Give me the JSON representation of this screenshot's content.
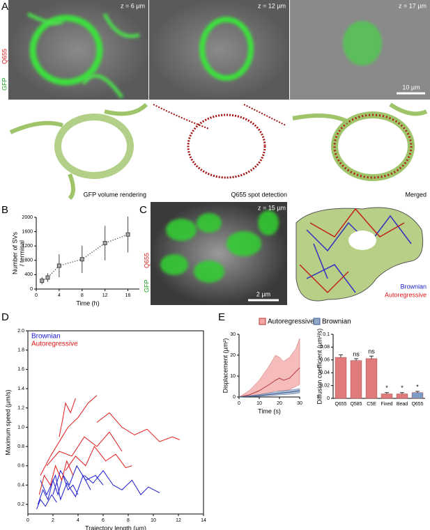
{
  "panels": {
    "a": "A",
    "b": "B",
    "c": "C",
    "d": "D",
    "e": "E"
  },
  "panel_a": {
    "channel_labels": [
      "GFP",
      "Q655"
    ],
    "z_labels": [
      "z = 6 µm",
      "z = 12 µm",
      "z = 17 µm"
    ],
    "scale_bar": "10 µm",
    "captions": [
      "GFP volume rendering",
      "Q655 spot detection",
      "Merged"
    ]
  },
  "panel_c": {
    "channel_labels": [
      "GFP",
      "Q655"
    ],
    "z_label": "z = 15 µm",
    "scale_bar": "2 µm",
    "legend": [
      "Brownian",
      "Autoregressive"
    ]
  },
  "chart_data": [
    {
      "type": "errorbar",
      "x_label": "Time (h)",
      "y_label": [
        "Number of SVs",
        "/ terminal"
      ],
      "x": [
        1,
        2,
        4,
        8,
        12,
        16
      ],
      "values": [
        230,
        320,
        650,
        830,
        1280,
        1520
      ],
      "errors": [
        100,
        120,
        320,
        380,
        480,
        500
      ],
      "xlim": [
        0,
        18
      ],
      "xticks": [
        0,
        4,
        8,
        12,
        16
      ],
      "ylim": [
        0,
        2000
      ],
      "yticks": [
        0,
        400,
        800,
        1200,
        1600,
        2000
      ],
      "fit": "dotted",
      "color": "#444444"
    },
    {
      "type": "trajectory",
      "x_label": "Trajectory length (µm)",
      "y_label": "Maximum speed (µm/s)",
      "xlim": [
        0,
        14
      ],
      "xticks": [
        0,
        2,
        4,
        6,
        8,
        10,
        12,
        14
      ],
      "ylim": [
        0.1,
        2.0
      ],
      "yticks": [
        0.2,
        0.4,
        0.6,
        0.8,
        {
          "value": 1,
          "label": "1.0"
        },
        1.2,
        1.4,
        1.6,
        1.8,
        {
          "value": 2,
          "label": "2.0"
        }
      ],
      "series": [
        {
          "name": "Brownian",
          "color": "#1a1acc",
          "paths": [
            {
              "x": [
                0.8,
                1.2,
                1.6,
                2.0,
                2.4,
                2.8,
                3.2,
                3.6,
                4.0
              ],
              "y": [
                0.2,
                0.35,
                0.25,
                0.45,
                0.3,
                0.5,
                0.35,
                0.4,
                0.3
              ]
            },
            {
              "x": [
                1.0,
                1.5,
                2.2,
                2.6,
                3.1,
                3.8,
                4.4,
                5.0
              ],
              "y": [
                0.45,
                0.3,
                0.5,
                0.25,
                0.42,
                0.28,
                0.5,
                0.35
              ]
            },
            {
              "x": [
                4.5,
                5.2,
                6.0,
                6.8,
                7.5,
                8.3,
                9.0,
                9.6,
                10.5
              ],
              "y": [
                0.5,
                0.42,
                0.55,
                0.4,
                0.35,
                0.45,
                0.3,
                0.38,
                0.32
              ]
            },
            {
              "x": [
                0.7,
                1.0,
                1.4,
                1.9,
                2.3
              ],
              "y": [
                0.15,
                0.25,
                0.18,
                0.3,
                0.22
              ]
            },
            {
              "x": [
                2.0,
                2.6,
                3.3,
                3.9,
                4.6,
                5.4,
                6.0
              ],
              "y": [
                0.3,
                0.55,
                0.4,
                0.6,
                0.45,
                0.5,
                0.4
              ]
            }
          ]
        },
        {
          "name": "Autoregressive",
          "color": "#e01818",
          "paths": [
            {
              "x": [
                1.0,
                1.8,
                2.5,
                3.2,
                4.0,
                4.8,
                5.5
              ],
              "y": [
                0.5,
                0.7,
                0.85,
                1.0,
                1.1,
                1.25,
                1.33
              ]
            },
            {
              "x": [
                5.5,
                6.5,
                7.5,
                8.5,
                9.5,
                10.5,
                11.5,
                12.1
              ],
              "y": [
                1.05,
                1.15,
                1.0,
                0.92,
                0.98,
                0.85,
                0.9,
                0.87
              ]
            },
            {
              "x": [
                1.5,
                2.5,
                3.5,
                4.5,
                5.5,
                6.5,
                7.5
              ],
              "y": [
                0.6,
                0.75,
                0.7,
                0.9,
                0.8,
                0.95,
                0.75
              ]
            },
            {
              "x": [
                0.9,
                1.3,
                1.8,
                2.2,
                2.7,
                3.1,
                3.6
              ],
              "y": [
                0.3,
                0.5,
                0.4,
                0.6,
                0.45,
                0.65,
                0.5
              ]
            },
            {
              "x": [
                3.0,
                3.8,
                4.6,
                5.3,
                6.2,
                7.0,
                7.8,
                8.3
              ],
              "y": [
                0.55,
                0.7,
                0.6,
                0.8,
                0.65,
                0.72,
                0.58,
                0.6
              ]
            },
            {
              "x": [
                2.5,
                2.8,
                3.0,
                3.4,
                3.8
              ],
              "y": [
                0.9,
                1.1,
                1.25,
                1.15,
                1.3
              ]
            }
          ]
        }
      ]
    },
    {
      "type": "band",
      "x_label": "Time (s)",
      "y_label": "Displacement (µm²)",
      "x": [
        0,
        5,
        10,
        15,
        18,
        20,
        22,
        25,
        28,
        30
      ],
      "xlim": [
        0,
        30
      ],
      "xticks": [
        0,
        10,
        20,
        30
      ],
      "ylim": [
        0,
        30
      ],
      "yticks": [
        0,
        10,
        20,
        30
      ],
      "series": [
        {
          "name": "Autoregressive",
          "color": "#f4a6a6",
          "line_color": "#b03a3a",
          "values": [
            0,
            1,
            3,
            6,
            8,
            9,
            8,
            9,
            12,
            14
          ],
          "upper": [
            0,
            3,
            8,
            15,
            20,
            19,
            17,
            19,
            23,
            28
          ],
          "lower": [
            0,
            0.5,
            1,
            2,
            3,
            3,
            3,
            3.5,
            5,
            6
          ]
        },
        {
          "name": "Brownian",
          "color": "#8fa8c8",
          "line_color": "#3a5a8a",
          "values": [
            0,
            0.3,
            0.7,
            1.2,
            1.5,
            1.8,
            2,
            2.3,
            2.7,
            3
          ],
          "upper": [
            0,
            0.6,
            1.2,
            2,
            2.5,
            2.8,
            3,
            3.3,
            3.7,
            4
          ],
          "lower": [
            0,
            0.1,
            0.3,
            0.6,
            0.8,
            1,
            1.1,
            1.3,
            1.6,
            2
          ]
        }
      ]
    },
    {
      "type": "bar",
      "y_label": "Diffusion coefficient (µm²/s)",
      "categories": [
        "Q655",
        "Q585",
        "C5E",
        "Fixed",
        "Bead",
        "Q655"
      ],
      "values": [
        0.064,
        0.059,
        0.062,
        0.007,
        0.007,
        0.009
      ],
      "errors": [
        0.004,
        0.003,
        0.004,
        0.002,
        0.002,
        0.002
      ],
      "annotations": [
        null,
        "ns",
        "ns",
        "*",
        "*",
        "*"
      ],
      "colors": [
        "#e07b7b",
        "#e07b7b",
        "#e07b7b",
        "#e07b7b",
        "#e07b7b",
        "#7a9cc6"
      ],
      "ylim": [
        0,
        0.1
      ],
      "yticks": [
        0,
        0.02,
        0.04,
        0.06,
        0.08,
        0.1
      ]
    }
  ]
}
